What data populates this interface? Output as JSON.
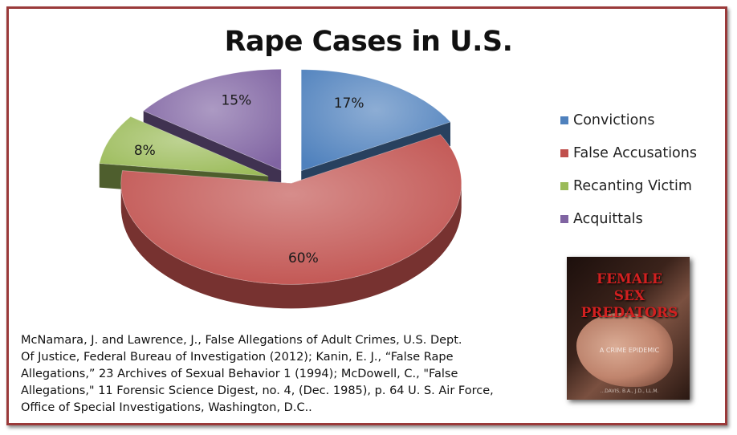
{
  "chart_data": {
    "type": "pie",
    "title": "Rape Cases in U.S.",
    "categories": [
      "Convictions",
      "False Accusations",
      "Recanting Victim",
      "Acquittals"
    ],
    "values": [
      17,
      60,
      8,
      15
    ],
    "data_labels": [
      "17%",
      "60%",
      "8%",
      "15%"
    ],
    "colors": [
      "#4f81bd",
      "#c0504d",
      "#9bbb59",
      "#8064a2"
    ],
    "style": "3D exploded",
    "legend_position": "right"
  },
  "citation": {
    "line1": "McNamara, J. and Lawrence, J., False Allegations of Adult Crimes, U.S. Dept.",
    "line2": "Of Justice, Federal Bureau of Investigation (2012);  Kanin, E. J., “False Rape",
    "line3": "Allegations,” 23 Archives of Sexual Behavior 1 (1994); McDowell, C., \"False",
    "line4": "Allegations,\" 11 Forensic Science Digest, no. 4, (Dec. 1985), p. 64 U. S. Air Force,",
    "line5": "Office of Special Investigations, Washington, D.C.."
  },
  "book": {
    "title": "FEMALE\nSEX\nPREDATORS",
    "subtitle": "A CRIME EPIDEMIC",
    "author": "...DAVIS, B.A., J.D., LL.M."
  }
}
